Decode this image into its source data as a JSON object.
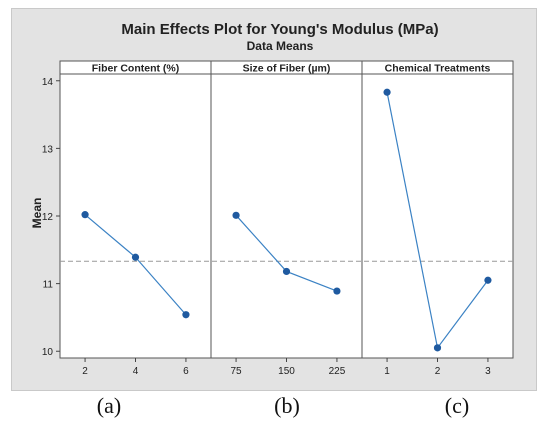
{
  "chart_data": {
    "type": "line",
    "title": "Main Effects Plot for Young's Modulus (MPa)",
    "subtitle": "Data Means",
    "ylabel": "Mean",
    "ylim": [
      9.9,
      14.1
    ],
    "yticks": [
      10,
      11,
      12,
      13,
      14
    ],
    "reference_line": 11.33,
    "line_color": "#3b82c4",
    "marker_color": "#1f5aa0",
    "panels": [
      {
        "title": "Fiber Content (%)",
        "categories": [
          "2",
          "4",
          "6"
        ],
        "values": [
          12.02,
          11.39,
          10.54
        ]
      },
      {
        "title": "Size of Fiber (µm)",
        "categories": [
          "75",
          "150",
          "225"
        ],
        "values": [
          12.01,
          11.18,
          10.89
        ]
      },
      {
        "title": "Chemical Treatments",
        "categories": [
          "1",
          "2",
          "3"
        ],
        "values": [
          13.83,
          10.05,
          11.05
        ]
      }
    ]
  },
  "sub_labels": [
    "(a)",
    "(b)",
    "(c)"
  ]
}
